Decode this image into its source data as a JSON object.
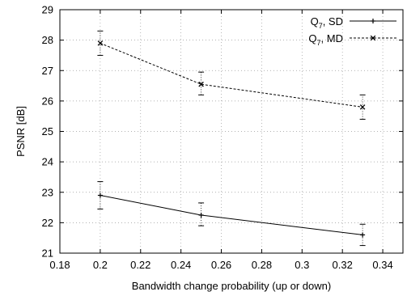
{
  "chart_data": {
    "type": "line",
    "xlabel": "Bandwidth change probability (up or down)",
    "ylabel": "PSNR [dB]",
    "xlim": [
      0.18,
      0.35
    ],
    "ylim": [
      21,
      29
    ],
    "xticks": [
      "0.18",
      "0.2",
      "0.22",
      "0.24",
      "0.26",
      "0.28",
      "0.3",
      "0.32",
      "0.34"
    ],
    "yticks": [
      "21",
      "22",
      "23",
      "24",
      "25",
      "26",
      "27",
      "28",
      "29"
    ],
    "grid": true,
    "legend_position": "top-right",
    "series": [
      {
        "name_main": "Q",
        "name_sub": "7",
        "name_rest": ", SD",
        "style": "solid",
        "marker": "plus",
        "x": [
          0.2,
          0.25,
          0.33
        ],
        "y": [
          22.9,
          22.25,
          21.6
        ],
        "err_low": [
          22.45,
          21.9,
          21.25
        ],
        "err_high": [
          23.35,
          22.65,
          21.95
        ]
      },
      {
        "name_main": "Q",
        "name_sub": "7",
        "name_rest": ", MD",
        "style": "dashed",
        "marker": "x",
        "x": [
          0.2,
          0.25,
          0.33
        ],
        "y": [
          27.9,
          26.55,
          25.8
        ],
        "err_low": [
          27.5,
          26.2,
          25.4
        ],
        "err_high": [
          28.3,
          26.95,
          26.2
        ]
      }
    ]
  }
}
